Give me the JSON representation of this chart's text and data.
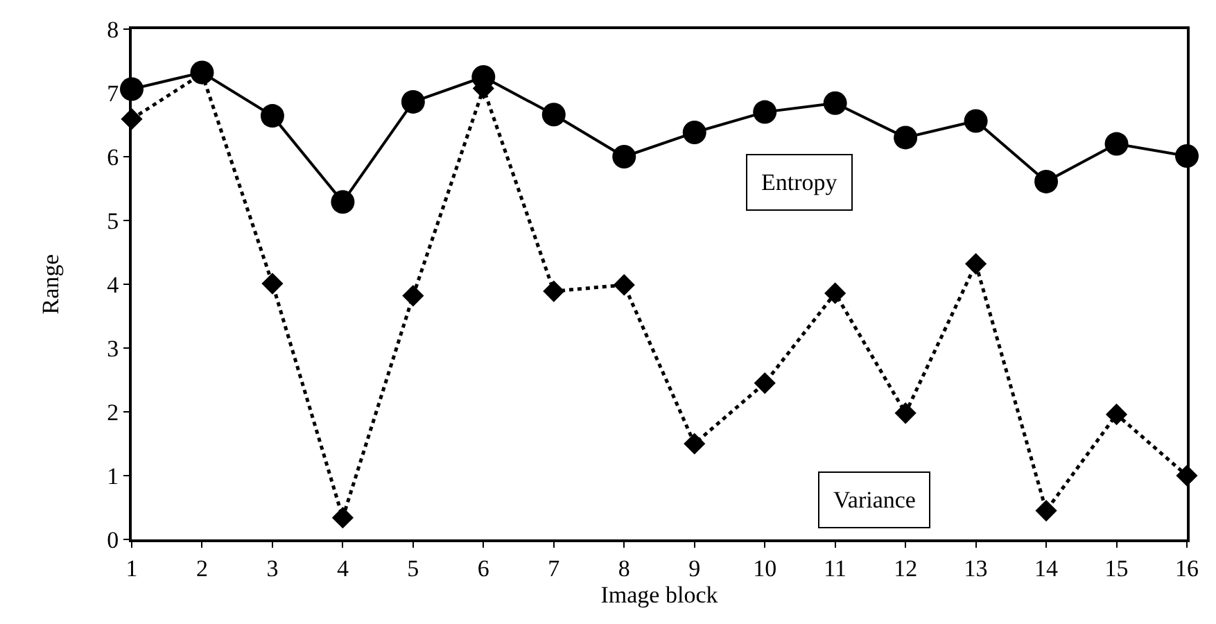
{
  "chart_data": {
    "type": "line",
    "xlabel": "Image block",
    "ylabel": "Range",
    "x": [
      1,
      2,
      3,
      4,
      5,
      6,
      7,
      8,
      9,
      10,
      11,
      12,
      13,
      14,
      15,
      16
    ],
    "xlim": [
      1,
      16
    ],
    "xticks": [
      1,
      2,
      3,
      4,
      5,
      6,
      7,
      8,
      9,
      10,
      11,
      12,
      13,
      14,
      15,
      16
    ],
    "ylim": [
      0,
      8
    ],
    "yticks": [
      0,
      1,
      2,
      3,
      4,
      5,
      6,
      7,
      8
    ],
    "legend": false,
    "series": [
      {
        "name": "Entropy",
        "color": "#000000",
        "marker": "circle",
        "line_style": "solid",
        "values": [
          7.06,
          7.32,
          6.64,
          5.29,
          6.86,
          7.25,
          6.66,
          6.0,
          6.38,
          6.7,
          6.84,
          6.3,
          6.56,
          5.61,
          6.2,
          6.01
        ]
      },
      {
        "name": "Variance",
        "color": "#000000",
        "marker": "diamond",
        "line_style": "dotted",
        "values": [
          6.59,
          7.3,
          4.01,
          0.34,
          3.82,
          7.07,
          3.89,
          3.99,
          1.5,
          2.45,
          3.86,
          1.98,
          4.32,
          0.45,
          1.96,
          1.0
        ]
      }
    ]
  }
}
